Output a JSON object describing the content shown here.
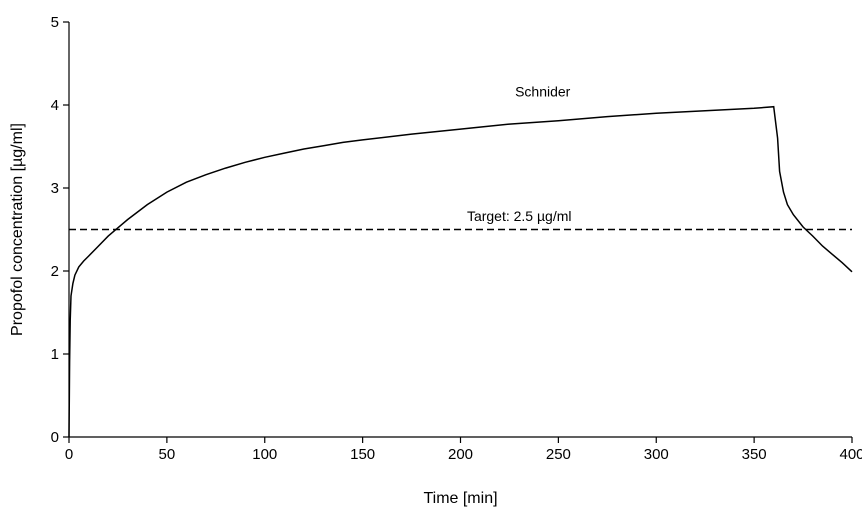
{
  "chart_data": {
    "type": "line",
    "title": "",
    "xlabel": "Time [min]",
    "ylabel": "Propofol concentration [µg/ml]",
    "xlim": [
      0,
      400
    ],
    "ylim": [
      0,
      5
    ],
    "x_ticks": [
      0,
      50,
      100,
      150,
      200,
      250,
      300,
      350,
      400
    ],
    "x_tick_labels": [
      "0",
      "50",
      "100",
      "150",
      "200",
      "250",
      "300",
      "350",
      "400"
    ],
    "y_ticks": [
      0,
      1,
      2,
      3,
      4,
      5
    ],
    "y_tick_labels": [
      "0",
      "1",
      "2",
      "3",
      "4",
      "5"
    ],
    "grid": false,
    "legend": "none",
    "series": [
      {
        "name": "Schnider",
        "style": "solid",
        "color": "#000000",
        "points": [
          [
            0,
            0
          ],
          [
            0.3,
            0.9
          ],
          [
            0.6,
            1.4
          ],
          [
            1,
            1.7
          ],
          [
            2,
            1.85
          ],
          [
            3,
            1.95
          ],
          [
            5,
            2.05
          ],
          [
            7.5,
            2.12
          ],
          [
            10,
            2.18
          ],
          [
            15,
            2.3
          ],
          [
            20,
            2.42
          ],
          [
            25,
            2.52
          ],
          [
            30,
            2.62
          ],
          [
            40,
            2.8
          ],
          [
            50,
            2.95
          ],
          [
            60,
            3.07
          ],
          [
            70,
            3.16
          ],
          [
            80,
            3.24
          ],
          [
            90,
            3.31
          ],
          [
            100,
            3.37
          ],
          [
            110,
            3.42
          ],
          [
            120,
            3.47
          ],
          [
            130,
            3.51
          ],
          [
            140,
            3.55
          ],
          [
            150,
            3.58
          ],
          [
            175,
            3.65
          ],
          [
            200,
            3.71
          ],
          [
            225,
            3.77
          ],
          [
            250,
            3.81
          ],
          [
            275,
            3.86
          ],
          [
            300,
            3.9
          ],
          [
            325,
            3.93
          ],
          [
            350,
            3.96
          ],
          [
            360,
            3.98
          ],
          [
            362,
            3.6
          ],
          [
            363,
            3.2
          ],
          [
            365,
            2.95
          ],
          [
            367,
            2.8
          ],
          [
            370,
            2.68
          ],
          [
            375,
            2.53
          ],
          [
            380,
            2.42
          ],
          [
            385,
            2.3
          ],
          [
            390,
            2.2
          ],
          [
            395,
            2.1
          ],
          [
            400,
            1.99
          ]
        ]
      },
      {
        "name": "Target",
        "style": "dashed",
        "color": "#000000",
        "points": [
          [
            0,
            2.5
          ],
          [
            400,
            2.5
          ]
        ]
      }
    ],
    "annotations": [
      {
        "text": "Schnider",
        "x": 242,
        "y": 4.1
      },
      {
        "text": "Target: 2.5 µg/ml",
        "x": 230,
        "y": 2.6
      }
    ]
  }
}
